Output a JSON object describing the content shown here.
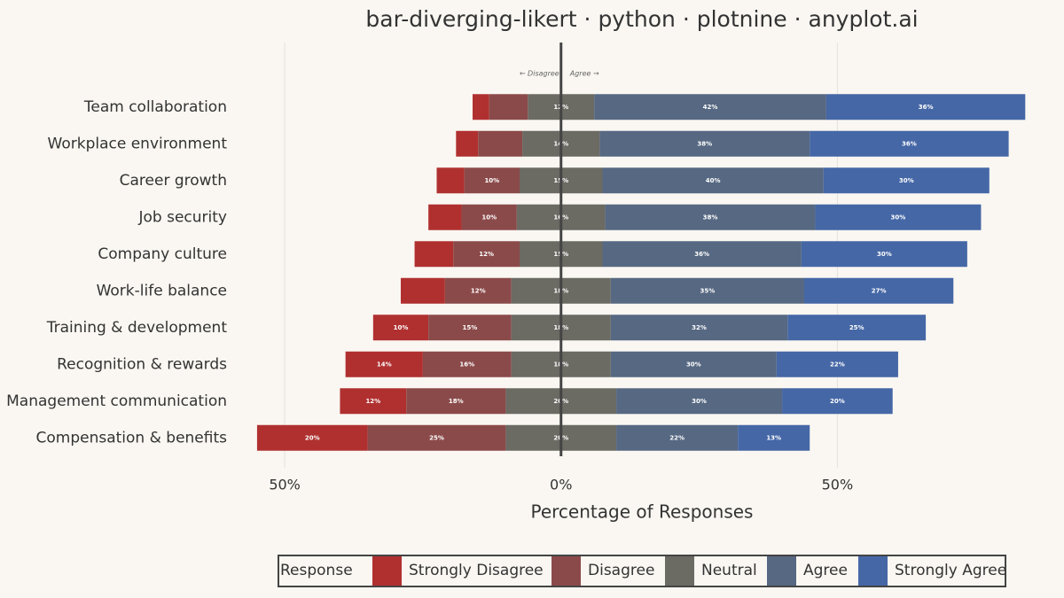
{
  "chart_data": {
    "type": "diverging-bar",
    "title": "bar-diverging-likert · python · plotnine · anyplot.ai",
    "x_label": "Percentage of Responses",
    "annotations": [
      "← Disagree",
      "Agree →"
    ],
    "legend_title": "Response",
    "legend_position": "bottom",
    "neutral_series": "Neutral",
    "categories": [
      "Team collaboration",
      "Workplace environment",
      "Career growth",
      "Job security",
      "Company culture",
      "Work-life balance",
      "Training & development",
      "Recognition & rewards",
      "Management communication",
      "Compensation & benefits"
    ],
    "series": [
      {
        "name": "Strongly Disagree",
        "color": "#b03030",
        "side": "left",
        "values": [
          3,
          4,
          5,
          6,
          7,
          8,
          10,
          14,
          12,
          20
        ],
        "value_labels": [
          null,
          null,
          null,
          null,
          null,
          null,
          "10%",
          "14%",
          "12%",
          "20%"
        ]
      },
      {
        "name": "Disagree",
        "color": "#8b4a4a",
        "side": "left",
        "values": [
          7,
          8,
          10,
          10,
          12,
          12,
          15,
          16,
          18,
          25
        ],
        "value_labels": [
          null,
          null,
          "10%",
          "10%",
          "12%",
          "12%",
          "15%",
          "16%",
          "18%",
          "25%"
        ]
      },
      {
        "name": "Neutral",
        "color": "#6b6a63",
        "side": "center",
        "values": [
          12,
          14,
          15,
          16,
          15,
          18,
          18,
          18,
          20,
          20
        ],
        "value_labels": [
          "12%",
          "14%",
          "15%",
          "16%",
          "15%",
          "18%",
          "18%",
          "18%",
          "20%",
          "20%"
        ]
      },
      {
        "name": "Agree",
        "color": "#566882",
        "side": "right",
        "values": [
          42,
          38,
          40,
          38,
          36,
          35,
          32,
          30,
          30,
          22
        ],
        "value_labels": [
          "42%",
          "38%",
          "40%",
          "38%",
          "36%",
          "35%",
          "32%",
          "30%",
          "30%",
          "22%"
        ]
      },
      {
        "name": "Strongly Agree",
        "color": "#4567a6",
        "side": "right",
        "values": [
          36,
          36,
          30,
          30,
          30,
          27,
          25,
          22,
          20,
          13
        ],
        "value_labels": [
          "36%",
          "36%",
          "30%",
          "30%",
          "30%",
          "27%",
          "25%",
          "22%",
          "20%",
          "13%"
        ]
      }
    ],
    "xlim": [
      -59,
      87
    ],
    "xticks": [
      {
        "value": -50,
        "label": "50%"
      },
      {
        "value": 0,
        "label": "0%"
      },
      {
        "value": 50,
        "label": "50%"
      }
    ],
    "grid": true
  }
}
